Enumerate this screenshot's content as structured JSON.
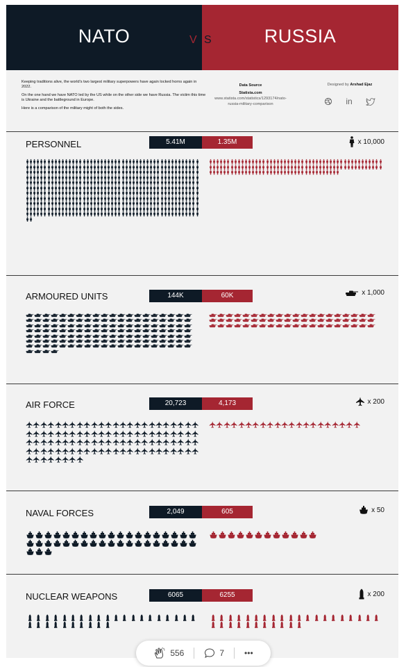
{
  "header": {
    "title_left": "NATO",
    "vs_v": "V",
    "vs_s": "S",
    "title_right": "RUSSIA"
  },
  "intro": {
    "p1": "Keeping traditions alive, the world's two largest military superpowers have again locked horns again in 2022.",
    "p2": "On the one hand we have NATO led by the US while on the other side we have Russia. The victim this time is Ukraine and the battleground in Europe.",
    "p3": "Here is a comparison of the military might of both the sides."
  },
  "source": {
    "title": "Data Source",
    "name": "Statista.com",
    "url": "www.statista.com/statistics/1293174/nato-russia-military-comparison"
  },
  "credits": {
    "prefix": "Designed by",
    "author": "Arshad Ejaz"
  },
  "social": {
    "icons": [
      "dribbble-icon",
      "linkedin-icon",
      "twitter-icon"
    ],
    "linkedin_text": "in"
  },
  "colors": {
    "nato": "#0e1a26",
    "russia": "#a52632",
    "background": "#f2f2f2"
  },
  "sections": [
    {
      "title": "PERSONNEL",
      "nato_label": "5.41M",
      "russia_label": "1.35M",
      "unit_icon": "soldier-icon",
      "unit_label": "x 10,000",
      "nato_count": 541,
      "russia_count": 135
    },
    {
      "title": "ARMOURED UNITS",
      "nato_label": "144K",
      "russia_label": "60K",
      "unit_icon": "tank-icon",
      "unit_label": "x 1,000",
      "nato_count": 144,
      "russia_count": 60
    },
    {
      "title": "AIR FORCE",
      "nato_label": "20,723",
      "russia_label": "4,173",
      "unit_icon": "jet-icon",
      "unit_label": "x 200",
      "nato_count": 104,
      "russia_count": 21
    },
    {
      "title": "NAVAL FORCES",
      "nato_label": "2,049",
      "russia_label": "605",
      "unit_icon": "ship-icon",
      "unit_label": "x 50",
      "nato_count": 41,
      "russia_count": 12
    },
    {
      "title": "NUCLEAR WEAPONS",
      "nato_label": "6065",
      "russia_label": "6255",
      "unit_icon": "warhead-icon",
      "unit_label": "x 200",
      "nato_count": 30,
      "russia_count": 31
    }
  ],
  "reactions": {
    "claps": "556",
    "comments": "7",
    "more": "•••"
  }
}
